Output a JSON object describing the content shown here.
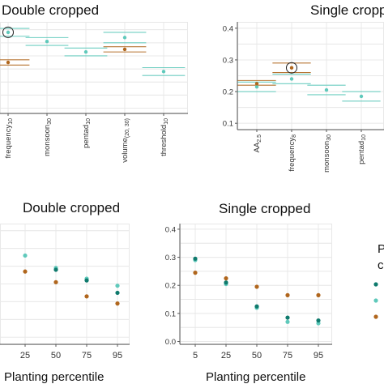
{
  "colors": {
    "teal": "#5fc9bb",
    "darkteal": "#0f7a6d",
    "orange": "#b0661d",
    "gold": "#c9a227",
    "grid": "#e8e8e8",
    "axis": "#555555"
  },
  "chart_data": [
    {
      "id": "top-left",
      "type": "scatter",
      "title": "Double cropped",
      "categories": [
        "frequency10",
        "monsoon30",
        "pentad10",
        "volume(20,30)",
        "threshold10"
      ],
      "category_labels": [
        {
          "base": "frequency",
          "sub": "10"
        },
        {
          "base": "monsoon",
          "sub": "30"
        },
        {
          "base": "pentad",
          "sub": "10"
        },
        {
          "base": "volume",
          "sub": "(20, 30)"
        },
        {
          "base": "threshold",
          "sub": "10"
        }
      ],
      "series": [
        {
          "values": [
            0.39,
            0.355,
            0.315,
            0.37,
            0.24
          ],
          "color": "teal"
        },
        {
          "values": [
            0.275,
            null,
            null,
            0.325,
            null
          ],
          "color": "orange"
        }
      ],
      "intervals": [
        {
          "series": 0,
          "index": 0,
          "low": 0.375,
          "high": 0.405
        },
        {
          "series": 0,
          "index": 1,
          "low": 0.34,
          "high": 0.37
        },
        {
          "series": 0,
          "index": 2,
          "low": 0.3,
          "high": 0.33
        },
        {
          "series": 0,
          "index": 3,
          "low": 0.35,
          "high": 0.39
        },
        {
          "series": 0,
          "index": 4,
          "low": 0.225,
          "high": 0.255
        },
        {
          "series": 1,
          "index": 0,
          "low": 0.265,
          "high": 0.285
        },
        {
          "series": 1,
          "index": 3,
          "low": 0.315,
          "high": 0.335
        }
      ],
      "highlighted": {
        "series": 0,
        "index": 0
      },
      "ylim": [
        0.08,
        0.43
      ]
    },
    {
      "id": "top-right",
      "type": "scatter",
      "title": "Single cropped",
      "categories": [
        "AA2.5",
        "frequency8",
        "monsoon30",
        "pentad10"
      ],
      "category_labels": [
        {
          "base": "AA",
          "sub": "2.5"
        },
        {
          "base": "frequency",
          "sub": "8"
        },
        {
          "base": "monsoon",
          "sub": "30"
        },
        {
          "base": "pentad",
          "sub": "10"
        }
      ],
      "yticks": [
        "0.1",
        "0.2",
        "0.3",
        "0.4"
      ],
      "series": [
        {
          "values": [
            0.215,
            0.24,
            0.205,
            0.185
          ],
          "color": "teal"
        },
        {
          "values": [
            0.225,
            0.275,
            null,
            null
          ],
          "color": "orange"
        }
      ],
      "intervals": [
        {
          "series": 0,
          "index": 0,
          "low": 0.2,
          "high": 0.23
        },
        {
          "series": 0,
          "index": 1,
          "low": 0.225,
          "high": 0.255
        },
        {
          "series": 0,
          "index": 2,
          "low": 0.19,
          "high": 0.22
        },
        {
          "series": 0,
          "index": 3,
          "low": 0.17,
          "high": 0.2
        },
        {
          "series": 1,
          "index": 0,
          "low": 0.22,
          "high": 0.235
        },
        {
          "series": 1,
          "index": 1,
          "low": 0.26,
          "high": 0.29
        }
      ],
      "highlighted": {
        "series": 1,
        "index": 1
      },
      "ylim": [
        0.08,
        0.42
      ]
    },
    {
      "id": "bottom-left",
      "type": "scatter",
      "title": "Double cropped",
      "xlabel": "Planting percentile",
      "categories": [
        "25",
        "50",
        "75",
        "95"
      ],
      "series": [
        {
          "values": [
            0.33,
            0.295,
            0.265,
            0.245
          ],
          "color": "teal"
        },
        {
          "values": [
            null,
            0.29,
            0.26,
            0.225
          ],
          "color": "darkteal"
        },
        {
          "values": [
            0.285,
            0.255,
            0.215,
            0.195
          ],
          "color": "orange"
        }
      ],
      "ylim": [
        0.08,
        0.42
      ]
    },
    {
      "id": "bottom-right",
      "type": "scatter",
      "title": "Single cropped",
      "xlabel": "Planting percentile",
      "categories": [
        "5",
        "25",
        "50",
        "75",
        "95"
      ],
      "yticks": [
        "0.0",
        "0.1",
        "0.2",
        "0.3",
        "0.4"
      ],
      "series": [
        {
          "values": [
            0.29,
            0.205,
            0.12,
            0.07,
            0.065
          ],
          "color": "teal"
        },
        {
          "values": [
            0.295,
            0.21,
            0.125,
            0.085,
            0.075
          ],
          "color": "darkteal"
        },
        {
          "values": [
            0.245,
            0.225,
            0.195,
            0.165,
            0.165
          ],
          "color": "orange"
        }
      ],
      "ylim": [
        -0.01,
        0.42
      ]
    }
  ],
  "side_panel": {
    "line1": "P",
    "line2": "c"
  }
}
